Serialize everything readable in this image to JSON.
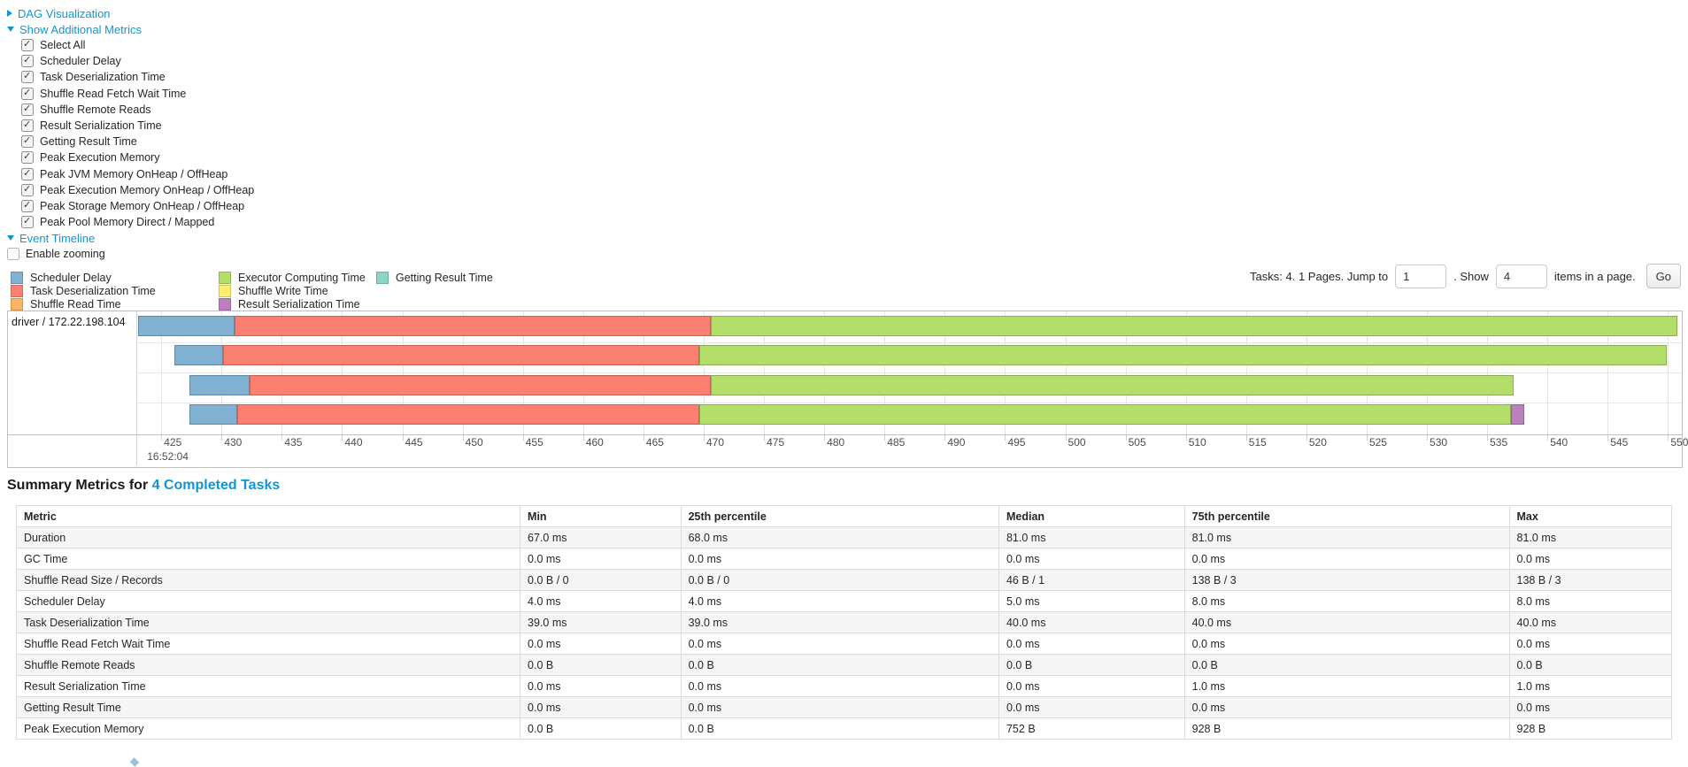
{
  "controls": {
    "dag": {
      "label": "DAG Visualization",
      "state": "collapsed"
    },
    "metrics": {
      "label": "Show Additional Metrics",
      "state": "expanded",
      "items": [
        {
          "label": "Select All",
          "checked": true
        },
        {
          "label": "Scheduler Delay",
          "checked": true
        },
        {
          "label": "Task Deserialization Time",
          "checked": true
        },
        {
          "label": "Shuffle Read Fetch Wait Time",
          "checked": true
        },
        {
          "label": "Shuffle Remote Reads",
          "checked": true
        },
        {
          "label": "Result Serialization Time",
          "checked": true
        },
        {
          "label": "Getting Result Time",
          "checked": true
        },
        {
          "label": "Peak Execution Memory",
          "checked": true
        },
        {
          "label": "Peak JVM Memory OnHeap / OffHeap",
          "checked": true
        },
        {
          "label": "Peak Execution Memory OnHeap / OffHeap",
          "checked": true
        },
        {
          "label": "Peak Storage Memory OnHeap / OffHeap",
          "checked": true
        },
        {
          "label": "Peak Pool Memory Direct / Mapped",
          "checked": true
        }
      ]
    },
    "event_timeline": {
      "label": "Event Timeline",
      "state": "expanded"
    },
    "enable_zooming": {
      "label": "Enable zooming",
      "checked": false
    }
  },
  "legend": {
    "columns": [
      [
        {
          "label": "Scheduler Delay",
          "color": "#80B1D3"
        },
        {
          "label": "Task Deserialization Time",
          "color": "#FB8072"
        },
        {
          "label": "Shuffle Read Time",
          "color": "#FDB462"
        }
      ],
      [
        {
          "label": "Executor Computing Time",
          "color": "#B3DE69"
        },
        {
          "label": "Shuffle Write Time",
          "color": "#FFED6F"
        },
        {
          "label": "Result Serialization Time",
          "color": "#BC80BD"
        }
      ],
      [
        {
          "label": "Getting Result Time",
          "color": "#8DD3C7"
        }
      ]
    ]
  },
  "pagination": {
    "summary_label": "Tasks: 4. 1 Pages. Jump to",
    "jump_value": "1",
    "show_label": ". Show",
    "show_value": "4",
    "items_label": "items in a page.",
    "go_label": "Go"
  },
  "timeline": {
    "executor_label": "driver / 172.22.198.104",
    "time_label": "16:52:04",
    "axis": {
      "window_start": 423.0,
      "window_end": 551.0,
      "tick_values": [
        425,
        430,
        435,
        440,
        445,
        450,
        455,
        460,
        465,
        470,
        475,
        480,
        485,
        490,
        495,
        500,
        505,
        510,
        515,
        520,
        525,
        530,
        535,
        540,
        545,
        550
      ]
    },
    "segment_colors": {
      "scheduler_delay": "#80B1D3",
      "task_deserialization": "#FB8072",
      "executor_computing": "#B3DE69",
      "result_serialization": "#BC80BD"
    },
    "tasks": [
      {
        "start": 423.1,
        "scheduler_delay": 8.0,
        "task_deserialization": 39.5,
        "executor_computing": 80.2,
        "result_serialization": 0
      },
      {
        "start": 426.1,
        "scheduler_delay": 4.0,
        "task_deserialization": 39.5,
        "executor_computing": 80.3,
        "result_serialization": 0
      },
      {
        "start": 427.3,
        "scheduler_delay": 5.0,
        "task_deserialization": 38.3,
        "executor_computing": 66.6,
        "result_serialization": 0
      },
      {
        "start": 427.3,
        "scheduler_delay": 4.0,
        "task_deserialization": 38.3,
        "executor_computing": 67.4,
        "result_serialization": 1.1
      }
    ]
  },
  "summary": {
    "title_prefix": "Summary Metrics for",
    "title_link": "4 Completed Tasks",
    "columns": [
      "Metric",
      "Min",
      "25th percentile",
      "Median",
      "75th percentile",
      "Max"
    ],
    "column_widths_pct": [
      30.4,
      9.7,
      19.2,
      11.2,
      19.6,
      9.8
    ],
    "rows": [
      {
        "metric": "Duration",
        "values": [
          "67.0 ms",
          "68.0 ms",
          "81.0 ms",
          "81.0 ms",
          "81.0 ms"
        ]
      },
      {
        "metric": "GC Time",
        "values": [
          "0.0 ms",
          "0.0 ms",
          "0.0 ms",
          "0.0 ms",
          "0.0 ms"
        ]
      },
      {
        "metric": "Shuffle Read Size / Records",
        "values": [
          "0.0 B / 0",
          "0.0 B / 0",
          "46 B / 1",
          "138 B / 3",
          "138 B / 3"
        ]
      },
      {
        "metric": "Scheduler Delay",
        "values": [
          "4.0 ms",
          "4.0 ms",
          "5.0 ms",
          "8.0 ms",
          "8.0 ms"
        ]
      },
      {
        "metric": "Task Deserialization Time",
        "values": [
          "39.0 ms",
          "39.0 ms",
          "40.0 ms",
          "40.0 ms",
          "40.0 ms"
        ]
      },
      {
        "metric": "Shuffle Read Fetch Wait Time",
        "values": [
          "0.0 ms",
          "0.0 ms",
          "0.0 ms",
          "0.0 ms",
          "0.0 ms"
        ]
      },
      {
        "metric": "Shuffle Remote Reads",
        "values": [
          "0.0 B",
          "0.0 B",
          "0.0 B",
          "0.0 B",
          "0.0 B"
        ]
      },
      {
        "metric": "Result Serialization Time",
        "values": [
          "0.0 ms",
          "0.0 ms",
          "0.0 ms",
          "1.0 ms",
          "1.0 ms"
        ]
      },
      {
        "metric": "Getting Result Time",
        "values": [
          "0.0 ms",
          "0.0 ms",
          "0.0 ms",
          "0.0 ms",
          "0.0 ms"
        ]
      },
      {
        "metric": "Peak Execution Memory",
        "values": [
          "0.0 B",
          "0.0 B",
          "752 B",
          "928 B",
          "928 B"
        ]
      }
    ]
  }
}
